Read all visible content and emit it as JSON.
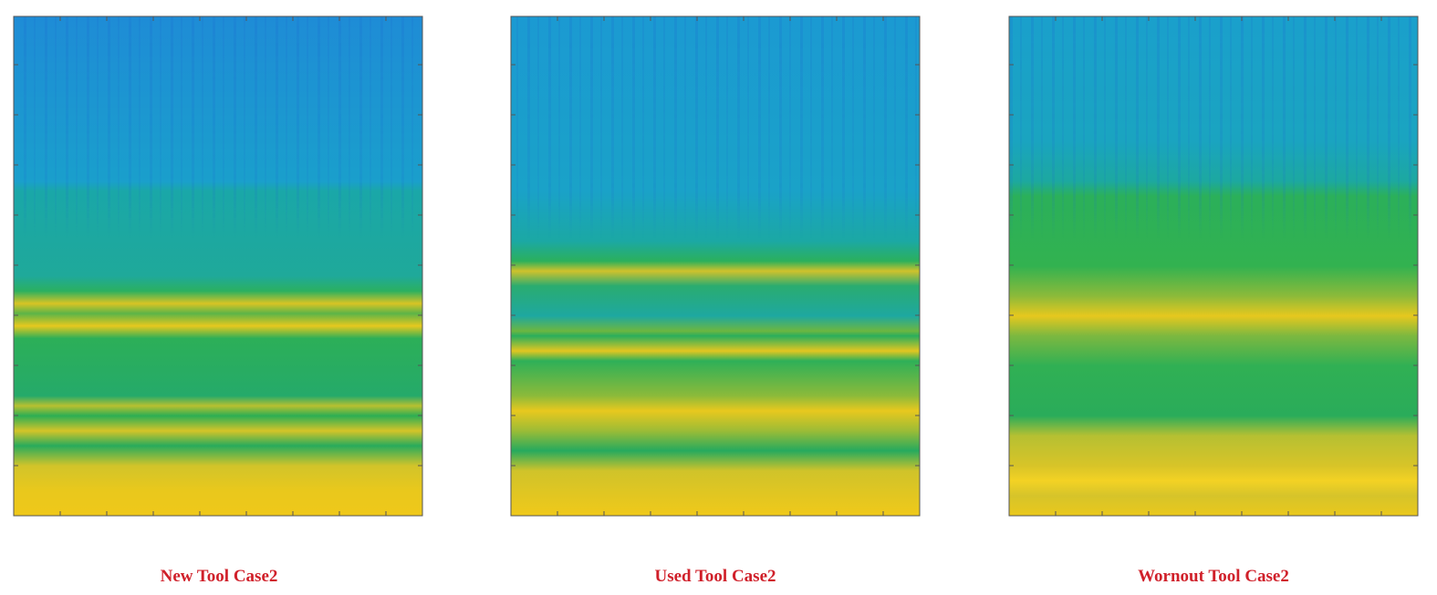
{
  "panels": [
    {
      "caption": "New Tool Case2"
    },
    {
      "caption": "Used Tool Case2"
    },
    {
      "caption": "Wornout Tool Case2"
    }
  ]
}
